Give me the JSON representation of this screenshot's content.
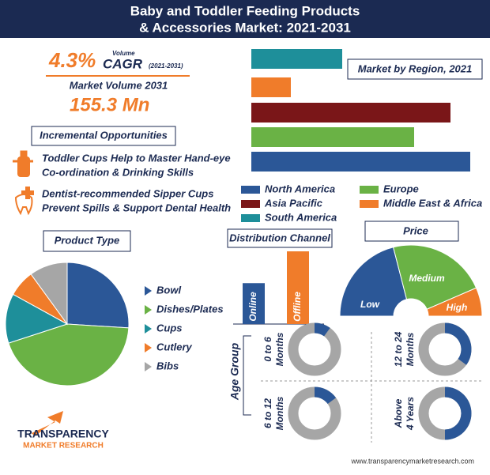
{
  "header": {
    "title": [
      "Baby and Toddler Feeding Products",
      "& Accessories Market: 2021-2031"
    ]
  },
  "stats": {
    "cagr": "4.3%",
    "volume_word": "Volume",
    "cagr_label": "CAGR",
    "cagr_period": "(2021-2031)",
    "volume_label": "Market Volume 2031",
    "volume_value": "155.3 Mn"
  },
  "opportunities": {
    "title": "Incremental Opportunities",
    "items": [
      [
        "Toddler Cups Help to Master Hand-eye",
        "Co-ordination & Drinking Skills"
      ],
      [
        "Dentist-recommended Sipper Cups",
        "Prevent Spills & Support Dental Health"
      ]
    ]
  },
  "chart_data": [
    {
      "type": "hbar",
      "title": "Market by Region, 2021",
      "categories": [
        "South America",
        "Middle East & Africa",
        "Asia Pacific",
        "Europe",
        "North America"
      ],
      "colors": [
        "#1e8f9a",
        "#f07c2a",
        "#7a1618",
        "#6ab245",
        "#2b5797"
      ],
      "values": [
        11.5,
        5,
        25.2,
        20.6,
        27.7
      ]
    },
    {
      "type": "pie",
      "title": "Product Type",
      "categories": [
        "Bowl",
        "Dishes/Plates",
        "Cups",
        "Cutlery",
        "Bibs"
      ],
      "colors": [
        "#2b5797",
        "#6ab245",
        "#1e8f9a",
        "#f07c2a",
        "#a6a6a6"
      ],
      "values": [
        26,
        44,
        13,
        7,
        10
      ]
    },
    {
      "type": "bar",
      "title": "Distribution Channel",
      "categories": [
        "Online",
        "Offline"
      ],
      "colors": [
        "#2b5797",
        "#f07c2a"
      ],
      "values": [
        36,
        64
      ]
    },
    {
      "type": "semi-donut",
      "title": "Price",
      "categories": [
        "Low",
        "Medium",
        "High"
      ],
      "colors": [
        "#2b5797",
        "#6ab245",
        "#f07c2a"
      ],
      "values": [
        42,
        45,
        13
      ]
    },
    {
      "type": "donut",
      "title": "Age Group",
      "categories": [
        [
          "0 to 6",
          "Months"
        ],
        [
          "12 to 24",
          "Months"
        ],
        [
          "6 to 12",
          "Months"
        ],
        [
          "Above",
          "4 Years"
        ]
      ],
      "color": "#2b5797",
      "track_color": "#a6a6a6",
      "values": [
        10,
        35,
        15,
        50
      ]
    }
  ],
  "footer": {
    "logo": [
      "TRANSPARENCY",
      "MARKET RESEARCH"
    ],
    "url": "www.transparencymarketresearch.com"
  }
}
